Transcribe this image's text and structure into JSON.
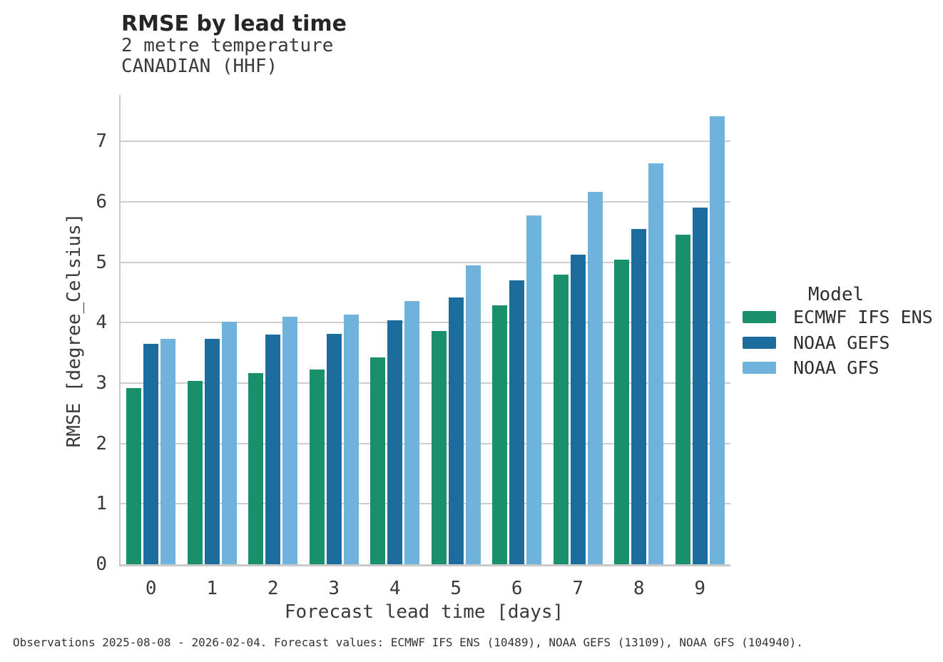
{
  "header": {
    "title": "RMSE by lead time",
    "subtitle_line1": "2 metre temperature",
    "subtitle_line2": "CANADIAN (HHF)"
  },
  "legend": {
    "title": "Model"
  },
  "footer": {
    "caption": "Observations 2025-08-08 - 2026-02-04. Forecast values: ECMWF IFS ENS (10489), NOAA GEFS (13109), NOAA GFS (104940)."
  },
  "colors": {
    "grid": "#cdcdcd",
    "spine": "#c9c9c9",
    "tick_text": "#3a3a3a",
    "title_text": "#262626",
    "footer_text": "#333333"
  },
  "chart_data": {
    "type": "bar",
    "title": "RMSE by lead time",
    "subtitle": [
      "2 metre temperature",
      "CANADIAN (HHF)"
    ],
    "xlabel": "Forecast lead time [days]",
    "ylabel": "RMSE [degree_Celsius]",
    "categories": [
      "0",
      "1",
      "2",
      "3",
      "4",
      "5",
      "6",
      "7",
      "8",
      "9"
    ],
    "series": [
      {
        "name": "ECMWF IFS ENS",
        "color": "#1A8F6C",
        "values": [
          2.92,
          3.03,
          3.17,
          3.22,
          3.42,
          3.86,
          4.29,
          4.79,
          5.04,
          5.46
        ]
      },
      {
        "name": "NOAA GEFS",
        "color": "#1D6C9E",
        "values": [
          3.65,
          3.73,
          3.8,
          3.81,
          4.04,
          4.42,
          4.7,
          5.13,
          5.55,
          5.91
        ]
      },
      {
        "name": "NOAA GFS",
        "color": "#6FB2DC",
        "values": [
          3.73,
          4.01,
          4.1,
          4.13,
          4.36,
          4.95,
          5.78,
          6.16,
          6.64,
          7.42
        ]
      }
    ],
    "ylim": [
      0,
      7.77
    ],
    "yticks": [
      0,
      1,
      2,
      3,
      4,
      5,
      6,
      7
    ],
    "grid": "horizontal",
    "legend_title": "Model",
    "legend_position": "right"
  }
}
